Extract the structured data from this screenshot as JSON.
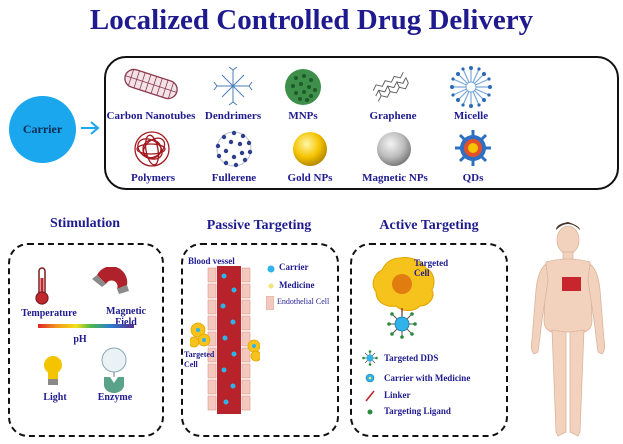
{
  "title": "Localized Controlled Drug Delivery",
  "carrier": {
    "label": "Carrier"
  },
  "carriers_row1": [
    "Carbon Nanotubes",
    "Dendrimers",
    "MNPs",
    "Graphene",
    "Micelle"
  ],
  "carriers_row2": [
    "Polymers",
    "Fullerene",
    "Gold NPs",
    "Magnetic NPs",
    "QDs"
  ],
  "stimulation": {
    "title": "Stimulation",
    "temperature": "Temperature",
    "magnetic_field": "Magnetic Field",
    "ph": "pH",
    "light": "Light",
    "enzyme": "Enzyme"
  },
  "passive": {
    "title": "Passive Targeting",
    "blood_vessel": "Blood vessel",
    "legend_carrier": "Carrier",
    "legend_medicine": "Medicine",
    "legend_endothelial": "Endothelial Cell",
    "targeted_cell": "Targeted Cell"
  },
  "active": {
    "title": "Active Targeting",
    "targeted_cell": "Targeted Cell",
    "legend_dds": "Targeted DDS",
    "legend_carrier_medicine": "Carrier with Medicine",
    "legend_linker": "Linker",
    "legend_ligand": "Targeting Ligand"
  },
  "colors": {
    "title": "#1f1b8f",
    "carrier": "#1aa7ee",
    "vessel": "#b8222a",
    "cell": "#f6c21c"
  }
}
